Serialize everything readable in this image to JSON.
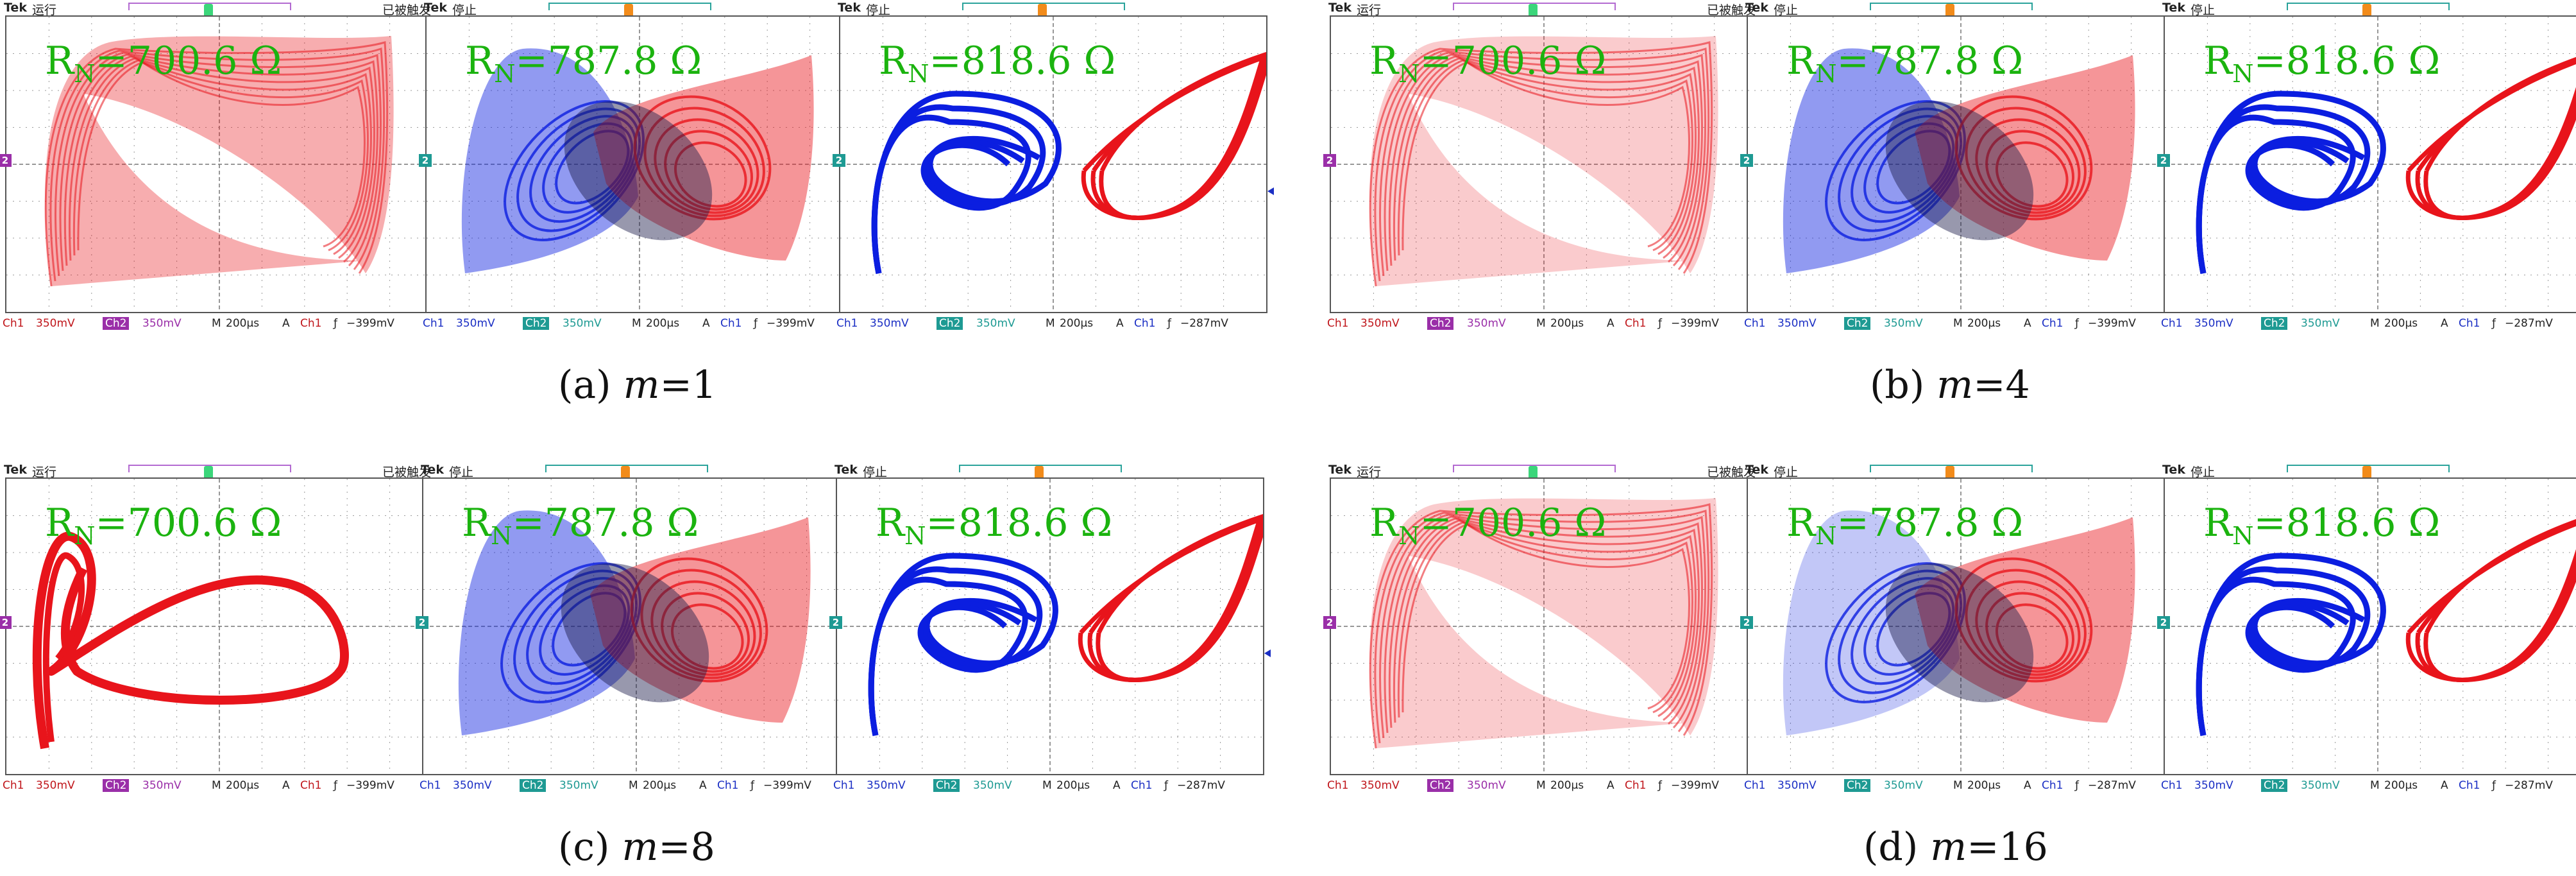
{
  "captions": {
    "a": {
      "label": "(a) ",
      "var": "m",
      "value": "=1"
    },
    "b": {
      "label": "(b) ",
      "var": "m",
      "value": "=4"
    },
    "c": {
      "label": "(c) ",
      "var": "m",
      "value": "=8"
    },
    "d": {
      "label": "(d) ",
      "var": "m",
      "value": "=16"
    }
  },
  "colors": {
    "red": "#e8141b",
    "blue": "#0b1ee0",
    "green": "#1bb30f",
    "purple": "#9a2fa8",
    "teal": "#1e9a93"
  },
  "scope_common": {
    "brand": "Tek",
    "ch1": "Ch1",
    "ch2": "Ch2",
    "scale": "350mV",
    "timebase_prefix": "M",
    "timebase": "200μs",
    "acq": "A",
    "trig_slope": "ƒ",
    "marker": "2"
  },
  "scopes": [
    {
      "state": "运行",
      "trig_status": "已被触发",
      "rn_prefix": "R",
      "rn_sub": "N",
      "rn_value": "=700.6 Ω",
      "trig_level": "−399mV",
      "trig_ch": "Ch1"
    },
    {
      "state": "停止",
      "trig_status": "",
      "rn_prefix": "R",
      "rn_sub": "N",
      "rn_value": "=787.8 Ω",
      "trig_level": "−399mV",
      "trig_ch": "Ch1"
    },
    {
      "state": "停止",
      "trig_status": "",
      "rn_prefix": "R",
      "rn_sub": "N",
      "rn_value": "=818.6  Ω",
      "trig_level": "−287mV",
      "trig_ch": "Ch1"
    },
    {
      "state": "运行",
      "trig_status": "已被触发",
      "rn_prefix": "R",
      "rn_sub": "N",
      "rn_value": "=700.6 Ω",
      "trig_level": "−399mV",
      "trig_ch": "Ch1"
    },
    {
      "state": "停止",
      "trig_status": "",
      "rn_prefix": "R",
      "rn_sub": "N",
      "rn_value": "=787.8 Ω",
      "trig_level": "−399mV",
      "trig_ch": "Ch1"
    },
    {
      "state": "停止",
      "trig_status": "",
      "rn_prefix": "R",
      "rn_sub": "N",
      "rn_value": "=818.6  Ω",
      "trig_level": "−287mV",
      "trig_ch": "Ch1"
    },
    {
      "state": "运行",
      "trig_status": "已被触发",
      "rn_prefix": "R",
      "rn_sub": "N",
      "rn_value": "=700.6 Ω",
      "trig_level": "−399mV",
      "trig_ch": "Ch1"
    },
    {
      "state": "停止",
      "trig_status": "",
      "rn_prefix": "R",
      "rn_sub": "N",
      "rn_value": "=787.8 Ω",
      "trig_level": "−399mV",
      "trig_ch": "Ch1"
    },
    {
      "state": "停止",
      "trig_status": "",
      "rn_prefix": "R",
      "rn_sub": "N",
      "rn_value": "=818.6 Ω",
      "trig_level": "−287mV",
      "trig_ch": "Ch1"
    },
    {
      "state": "运行",
      "trig_status": "已被触发",
      "rn_prefix": "R",
      "rn_sub": "N",
      "rn_value": "=700.6 Ω",
      "trig_level": "−399mV",
      "trig_ch": "Ch1"
    },
    {
      "state": "停止",
      "trig_status": "",
      "rn_prefix": "R",
      "rn_sub": "N",
      "rn_value": "=787.8 Ω",
      "trig_level": "−287mV",
      "trig_ch": "Ch1"
    },
    {
      "state": "停止",
      "trig_status": "",
      "rn_prefix": "R",
      "rn_sub": "N",
      "rn_value": "=818.6 Ω",
      "trig_level": "−287mV",
      "trig_ch": "Ch1"
    }
  ]
}
